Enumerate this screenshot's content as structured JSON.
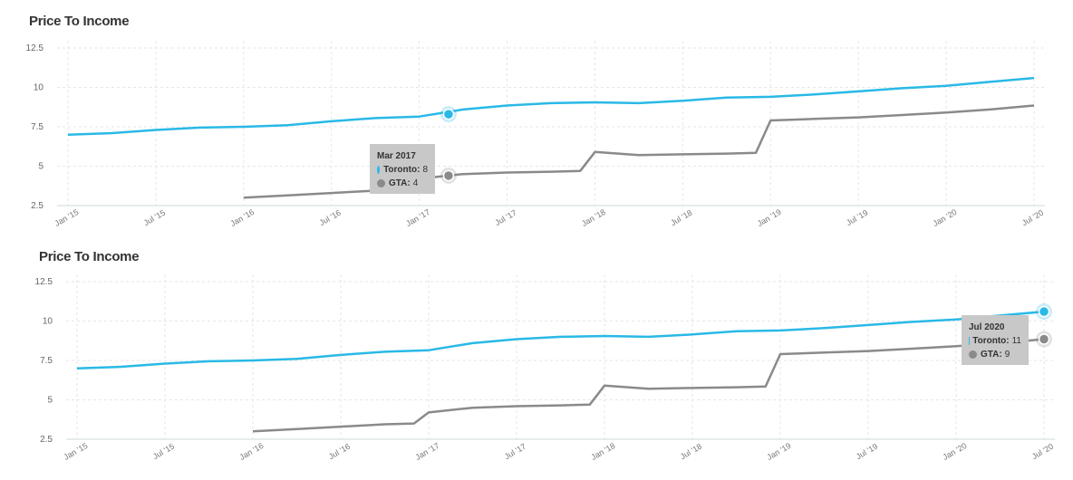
{
  "chart_data": [
    {
      "type": "line",
      "title": "Price To Income",
      "xlabel": "",
      "ylabel": "",
      "x_ticks": [
        "Jan '15",
        "Jul '15",
        "Jan '16",
        "Jul '16",
        "Jan '17",
        "Jul '17",
        "Jan '18",
        "Jul '18",
        "Jan '19",
        "Jul '19",
        "Jan '20",
        "Jul '20"
      ],
      "y_ticks": [
        "2.5",
        "5",
        "7.5",
        "10",
        "12.5"
      ],
      "ylim": [
        2.5,
        12.5
      ],
      "xlim": [
        "2015-01",
        "2020-07"
      ],
      "grid": true,
      "series": [
        {
          "name": "Toronto",
          "color": "#29b9e6",
          "x": [
            "2015-01",
            "2015-04",
            "2015-07",
            "2015-10",
            "2016-01",
            "2016-04",
            "2016-07",
            "2016-10",
            "2017-01",
            "2017-04",
            "2017-07",
            "2017-10",
            "2018-01",
            "2018-04",
            "2018-07",
            "2018-10",
            "2019-01",
            "2019-04",
            "2019-07",
            "2019-10",
            "2020-01",
            "2020-04",
            "2020-07"
          ],
          "values": [
            7.0,
            7.1,
            7.3,
            7.45,
            7.5,
            7.6,
            7.85,
            8.05,
            8.15,
            8.6,
            8.85,
            9.0,
            9.05,
            9.0,
            9.15,
            9.35,
            9.4,
            9.55,
            9.75,
            9.95,
            10.1,
            10.35,
            10.6
          ]
        },
        {
          "name": "GTA",
          "color": "#8a8a8a",
          "x": [
            "2016-01",
            "2016-04",
            "2016-07",
            "2016-10",
            "2016-12",
            "2017-01",
            "2017-04",
            "2017-07",
            "2017-10",
            "2017-12",
            "2018-01",
            "2018-04",
            "2018-07",
            "2018-10",
            "2018-12",
            "2019-01",
            "2019-04",
            "2019-07",
            "2019-10",
            "2020-01",
            "2020-04",
            "2020-07"
          ],
          "values": [
            3.0,
            3.15,
            3.3,
            3.45,
            3.5,
            4.2,
            4.5,
            4.6,
            4.65,
            4.7,
            5.9,
            5.7,
            5.75,
            5.8,
            5.85,
            7.9,
            8.0,
            8.1,
            8.25,
            8.4,
            8.6,
            8.85
          ]
        }
      ],
      "tooltip": {
        "date": "Mar 2017",
        "highlight_x": "2017-03",
        "rows": [
          {
            "name": "Toronto",
            "value": "8",
            "color": "#29b9e6",
            "y": 8.3
          },
          {
            "name": "GTA",
            "value": "4",
            "color": "#8a8a8a",
            "y": 4.4
          }
        ]
      }
    },
    {
      "type": "line",
      "title": "Price To Income",
      "xlabel": "",
      "ylabel": "",
      "x_ticks": [
        "Jan '15",
        "Jul '15",
        "Jan '16",
        "Jul '16",
        "Jan '17",
        "Jul '17",
        "Jan '18",
        "Jul '18",
        "Jan '19",
        "Jul '19",
        "Jan '20",
        "Jul '20"
      ],
      "y_ticks": [
        "2.5",
        "5",
        "7.5",
        "10",
        "12.5"
      ],
      "ylim": [
        2.5,
        12.5
      ],
      "xlim": [
        "2015-01",
        "2020-07"
      ],
      "grid": true,
      "series": [
        {
          "name": "Toronto",
          "color": "#29b9e6",
          "x": [
            "2015-01",
            "2015-04",
            "2015-07",
            "2015-10",
            "2016-01",
            "2016-04",
            "2016-07",
            "2016-10",
            "2017-01",
            "2017-04",
            "2017-07",
            "2017-10",
            "2018-01",
            "2018-04",
            "2018-07",
            "2018-10",
            "2019-01",
            "2019-04",
            "2019-07",
            "2019-10",
            "2020-01",
            "2020-04",
            "2020-07"
          ],
          "values": [
            7.0,
            7.1,
            7.3,
            7.45,
            7.5,
            7.6,
            7.85,
            8.05,
            8.15,
            8.6,
            8.85,
            9.0,
            9.05,
            9.0,
            9.15,
            9.35,
            9.4,
            9.55,
            9.75,
            9.95,
            10.1,
            10.35,
            10.6
          ]
        },
        {
          "name": "GTA",
          "color": "#8a8a8a",
          "x": [
            "2016-01",
            "2016-04",
            "2016-07",
            "2016-10",
            "2016-12",
            "2017-01",
            "2017-04",
            "2017-07",
            "2017-10",
            "2017-12",
            "2018-01",
            "2018-04",
            "2018-07",
            "2018-10",
            "2018-12",
            "2019-01",
            "2019-04",
            "2019-07",
            "2019-10",
            "2020-01",
            "2020-04",
            "2020-07"
          ],
          "values": [
            3.0,
            3.15,
            3.3,
            3.45,
            3.5,
            4.2,
            4.5,
            4.6,
            4.65,
            4.7,
            5.9,
            5.7,
            5.75,
            5.8,
            5.85,
            7.9,
            8.0,
            8.1,
            8.25,
            8.4,
            8.6,
            8.85
          ]
        }
      ],
      "tooltip": {
        "date": "Jul 2020",
        "highlight_x": "2020-07",
        "rows": [
          {
            "name": "Toronto",
            "value": "11",
            "color": "#29b9e6",
            "y": 10.6
          },
          {
            "name": "GTA",
            "value": "9",
            "color": "#8a8a8a",
            "y": 8.85
          }
        ]
      }
    }
  ]
}
